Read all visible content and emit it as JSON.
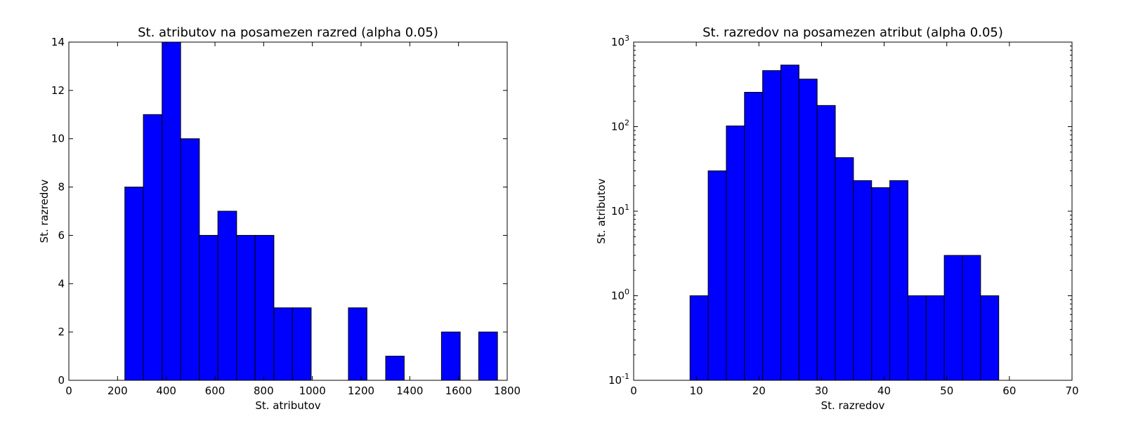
{
  "chart_data": [
    {
      "type": "bar",
      "title": "St. atributov na posamezen razred (alpha 0.05)",
      "xlabel": "St. atributov",
      "ylabel": "St. razredov",
      "xlim": [
        0,
        1800
      ],
      "ylim": [
        0,
        14
      ],
      "yscale": "linear",
      "grid": false,
      "xticks": [
        0,
        200,
        400,
        600,
        800,
        1000,
        1200,
        1400,
        1600,
        1800
      ],
      "yticks": [
        0,
        2,
        4,
        6,
        8,
        10,
        12,
        14
      ],
      "bar_color": "#0000ff",
      "bins": [
        {
          "x0": 230,
          "x1": 306,
          "value": 8
        },
        {
          "x0": 306,
          "x1": 383,
          "value": 11
        },
        {
          "x0": 383,
          "x1": 459,
          "value": 14
        },
        {
          "x0": 459,
          "x1": 536,
          "value": 10
        },
        {
          "x0": 536,
          "x1": 612,
          "value": 6
        },
        {
          "x0": 612,
          "x1": 689,
          "value": 7
        },
        {
          "x0": 689,
          "x1": 765,
          "value": 6
        },
        {
          "x0": 765,
          "x1": 842,
          "value": 6
        },
        {
          "x0": 842,
          "x1": 918,
          "value": 3
        },
        {
          "x0": 918,
          "x1": 995,
          "value": 3
        },
        {
          "x0": 995,
          "x1": 1071,
          "value": 0
        },
        {
          "x0": 1071,
          "x1": 1148,
          "value": 0
        },
        {
          "x0": 1148,
          "x1": 1224,
          "value": 3
        },
        {
          "x0": 1224,
          "x1": 1301,
          "value": 0
        },
        {
          "x0": 1301,
          "x1": 1377,
          "value": 1
        },
        {
          "x0": 1377,
          "x1": 1454,
          "value": 0
        },
        {
          "x0": 1454,
          "x1": 1530,
          "value": 0
        },
        {
          "x0": 1530,
          "x1": 1607,
          "value": 2
        },
        {
          "x0": 1607,
          "x1": 1683,
          "value": 0
        },
        {
          "x0": 1683,
          "x1": 1760,
          "value": 2
        }
      ]
    },
    {
      "type": "bar",
      "title": "St. razredov na posamezen atribut (alpha 0.05)",
      "xlabel": "St. razredov",
      "ylabel": "St. atributov",
      "xlim": [
        0,
        70
      ],
      "ylim": [
        0.1,
        1000
      ],
      "yscale": "log",
      "grid": false,
      "xticks": [
        0,
        10,
        20,
        30,
        40,
        50,
        60,
        70
      ],
      "yticks": [
        {
          "value": 0.1,
          "base": "10",
          "exp": "-1"
        },
        {
          "value": 1,
          "base": "10",
          "exp": "0"
        },
        {
          "value": 10,
          "base": "10",
          "exp": "1"
        },
        {
          "value": 100,
          "base": "10",
          "exp": "2"
        },
        {
          "value": 1000,
          "base": "10",
          "exp": "3"
        }
      ],
      "bar_color": "#0000ff",
      "bins": [
        {
          "x0": 9.0,
          "x1": 11.9,
          "value": 1
        },
        {
          "x0": 11.9,
          "x1": 14.8,
          "value": 30
        },
        {
          "x0": 14.8,
          "x1": 17.7,
          "value": 102
        },
        {
          "x0": 17.7,
          "x1": 20.6,
          "value": 255
        },
        {
          "x0": 20.6,
          "x1": 23.5,
          "value": 460
        },
        {
          "x0": 23.5,
          "x1": 26.4,
          "value": 535
        },
        {
          "x0": 26.4,
          "x1": 29.3,
          "value": 365
        },
        {
          "x0": 29.3,
          "x1": 32.2,
          "value": 178
        },
        {
          "x0": 32.2,
          "x1": 35.1,
          "value": 43
        },
        {
          "x0": 35.1,
          "x1": 38.0,
          "value": 23
        },
        {
          "x0": 38.0,
          "x1": 40.9,
          "value": 19
        },
        {
          "x0": 40.9,
          "x1": 43.8,
          "value": 23
        },
        {
          "x0": 43.8,
          "x1": 46.7,
          "value": 1
        },
        {
          "x0": 46.7,
          "x1": 49.6,
          "value": 1
        },
        {
          "x0": 49.6,
          "x1": 52.5,
          "value": 3
        },
        {
          "x0": 52.5,
          "x1": 55.4,
          "value": 3
        },
        {
          "x0": 55.4,
          "x1": 58.3,
          "value": 1
        }
      ]
    }
  ]
}
